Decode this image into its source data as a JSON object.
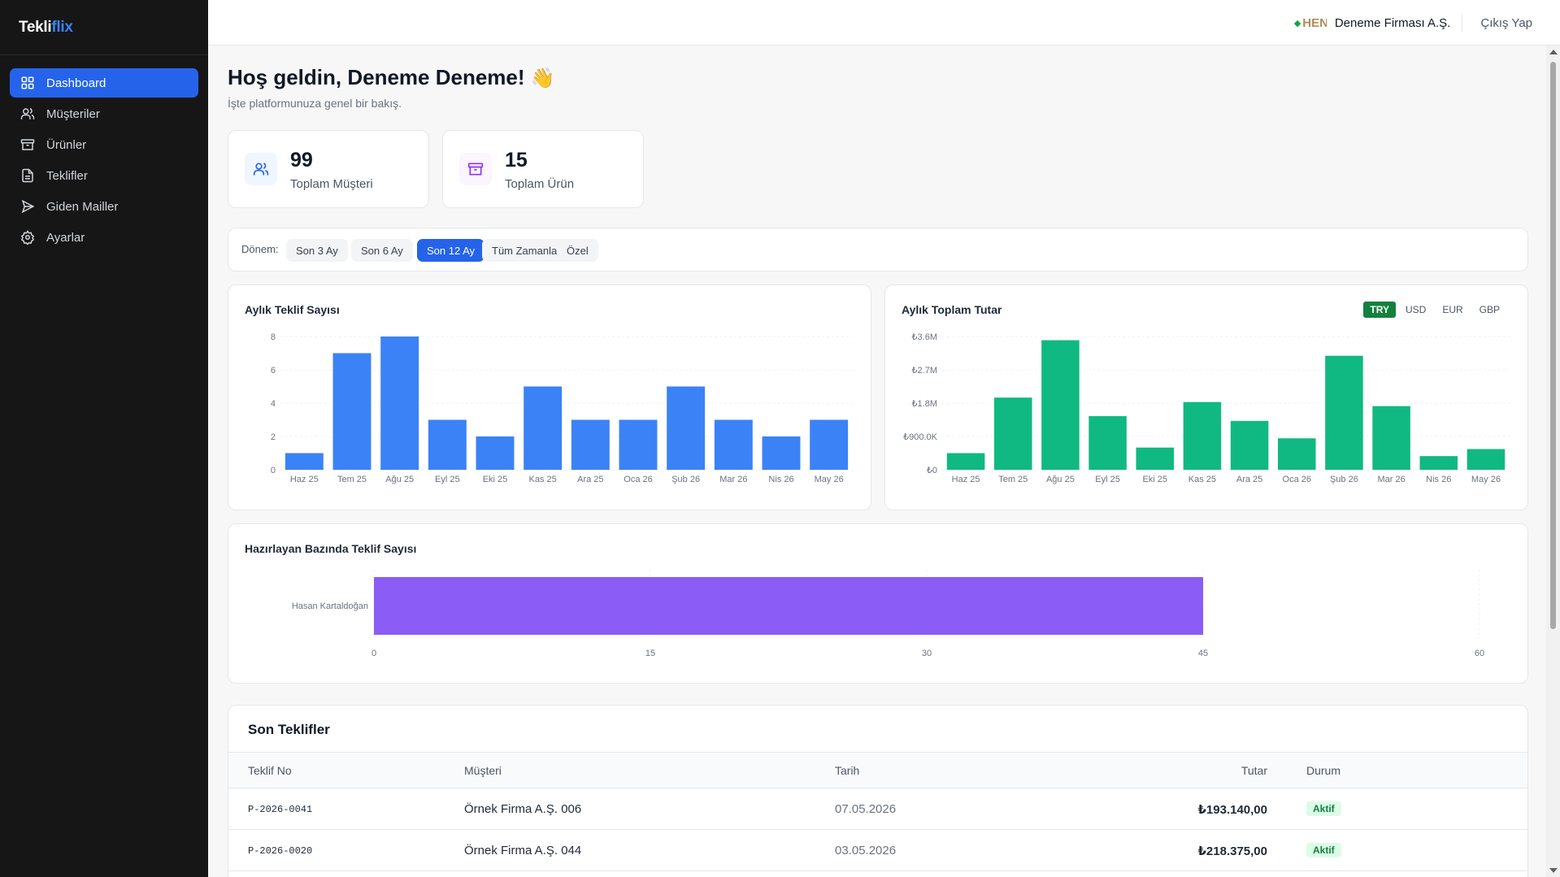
{
  "brand": {
    "logo_text": "Tekli",
    "logo_accent": "flix"
  },
  "nav": [
    {
      "label": "Dashboard",
      "icon": "grid-icon",
      "active": true
    },
    {
      "label": "Müşteriler",
      "icon": "users-icon"
    },
    {
      "label": "Ürünler",
      "icon": "archive-icon"
    },
    {
      "label": "Teklifler",
      "icon": "file-icon"
    },
    {
      "label": "Giden Mailler",
      "icon": "send-icon"
    },
    {
      "label": "Ayarlar",
      "icon": "gear-icon"
    }
  ],
  "header": {
    "company_logo_text": "HEN",
    "company_name": "Deneme Firması A.Ş.",
    "logout": "Çıkış Yap"
  },
  "welcome": {
    "title": "Hoş geldin, Deneme Deneme!",
    "wave": "👋",
    "subtitle": "İşte platformunuza genel bir bakış."
  },
  "stats": [
    {
      "value": "99",
      "label": "Toplam Müşteri",
      "icon": "users-icon",
      "color": "#2563eb",
      "bg": "#eff6ff"
    },
    {
      "value": "15",
      "label": "Toplam Ürün",
      "icon": "archive-icon",
      "color": "#9333ea",
      "bg": "#faf5ff"
    }
  ],
  "period": {
    "label": "Dönem:",
    "options": [
      "Son 3 Ay",
      "Son 6 Ay",
      "Son 12 Ay",
      "Tüm Zamanlar",
      "Özel"
    ],
    "selected": "Son 12 Ay"
  },
  "currency": {
    "options": [
      "TRY",
      "USD",
      "EUR",
      "GBP"
    ],
    "selected": "TRY"
  },
  "table": {
    "title": "Son Teklifler",
    "headers": [
      "Teklif No",
      "Müşteri",
      "Tarih",
      "Tutar",
      "Durum"
    ],
    "rows": [
      {
        "no": "P-2026-0041",
        "customer": "Örnek Firma A.Ş. 006",
        "date": "07.05.2026",
        "amount": "₺193.140,00",
        "status": "Aktif"
      },
      {
        "no": "P-2026-0020",
        "customer": "Örnek Firma A.Ş. 044",
        "date": "03.05.2026",
        "amount": "₺218.375,00",
        "status": "Aktif"
      }
    ]
  },
  "colors": {
    "primary": "#2563eb",
    "bar_blue": "#3b82f6",
    "bar_green": "#10b981",
    "bar_purple": "#8b5cf6"
  },
  "chart_data": [
    {
      "type": "bar",
      "title": "Aylık Teklif Sayısı",
      "categories": [
        "Haz 25",
        "Tem 25",
        "Ağu 25",
        "Eyl 25",
        "Eki 25",
        "Kas 25",
        "Ara 25",
        "Oca 26",
        "Şub 26",
        "Mar 26",
        "Nis 26",
        "May 26"
      ],
      "values": [
        1,
        7,
        8,
        3,
        2,
        5,
        3,
        3,
        5,
        3,
        2,
        3
      ],
      "yticks": [
        "0",
        "2",
        "4",
        "6",
        "8"
      ],
      "ylim": [
        0,
        8
      ]
    },
    {
      "type": "bar",
      "title": "Aylık Toplam Tutar",
      "categories": [
        "Haz 25",
        "Tem 25",
        "Ağu 25",
        "Eyl 25",
        "Eki 25",
        "Kas 25",
        "Ara 25",
        "Oca 26",
        "Şub 26",
        "Mar 26",
        "Nis 26",
        "May 26"
      ],
      "values": [
        450000,
        1950000,
        3500000,
        1450000,
        600000,
        1830000,
        1320000,
        850000,
        3080000,
        1720000,
        370000,
        560000
      ],
      "yticks": [
        "₺0",
        "₺900.0K",
        "₺1.8M",
        "₺2.7M",
        "₺3.6M"
      ],
      "ylim": [
        0,
        3600000
      ]
    },
    {
      "type": "bar",
      "orientation": "horizontal",
      "title": "Hazırlayan Bazında Teklif Sayısı",
      "categories": [
        "Hasan Kartaldoğan"
      ],
      "values": [
        45
      ],
      "xticks": [
        "0",
        "15",
        "30",
        "45",
        "60"
      ],
      "xlim": [
        0,
        60
      ]
    }
  ]
}
